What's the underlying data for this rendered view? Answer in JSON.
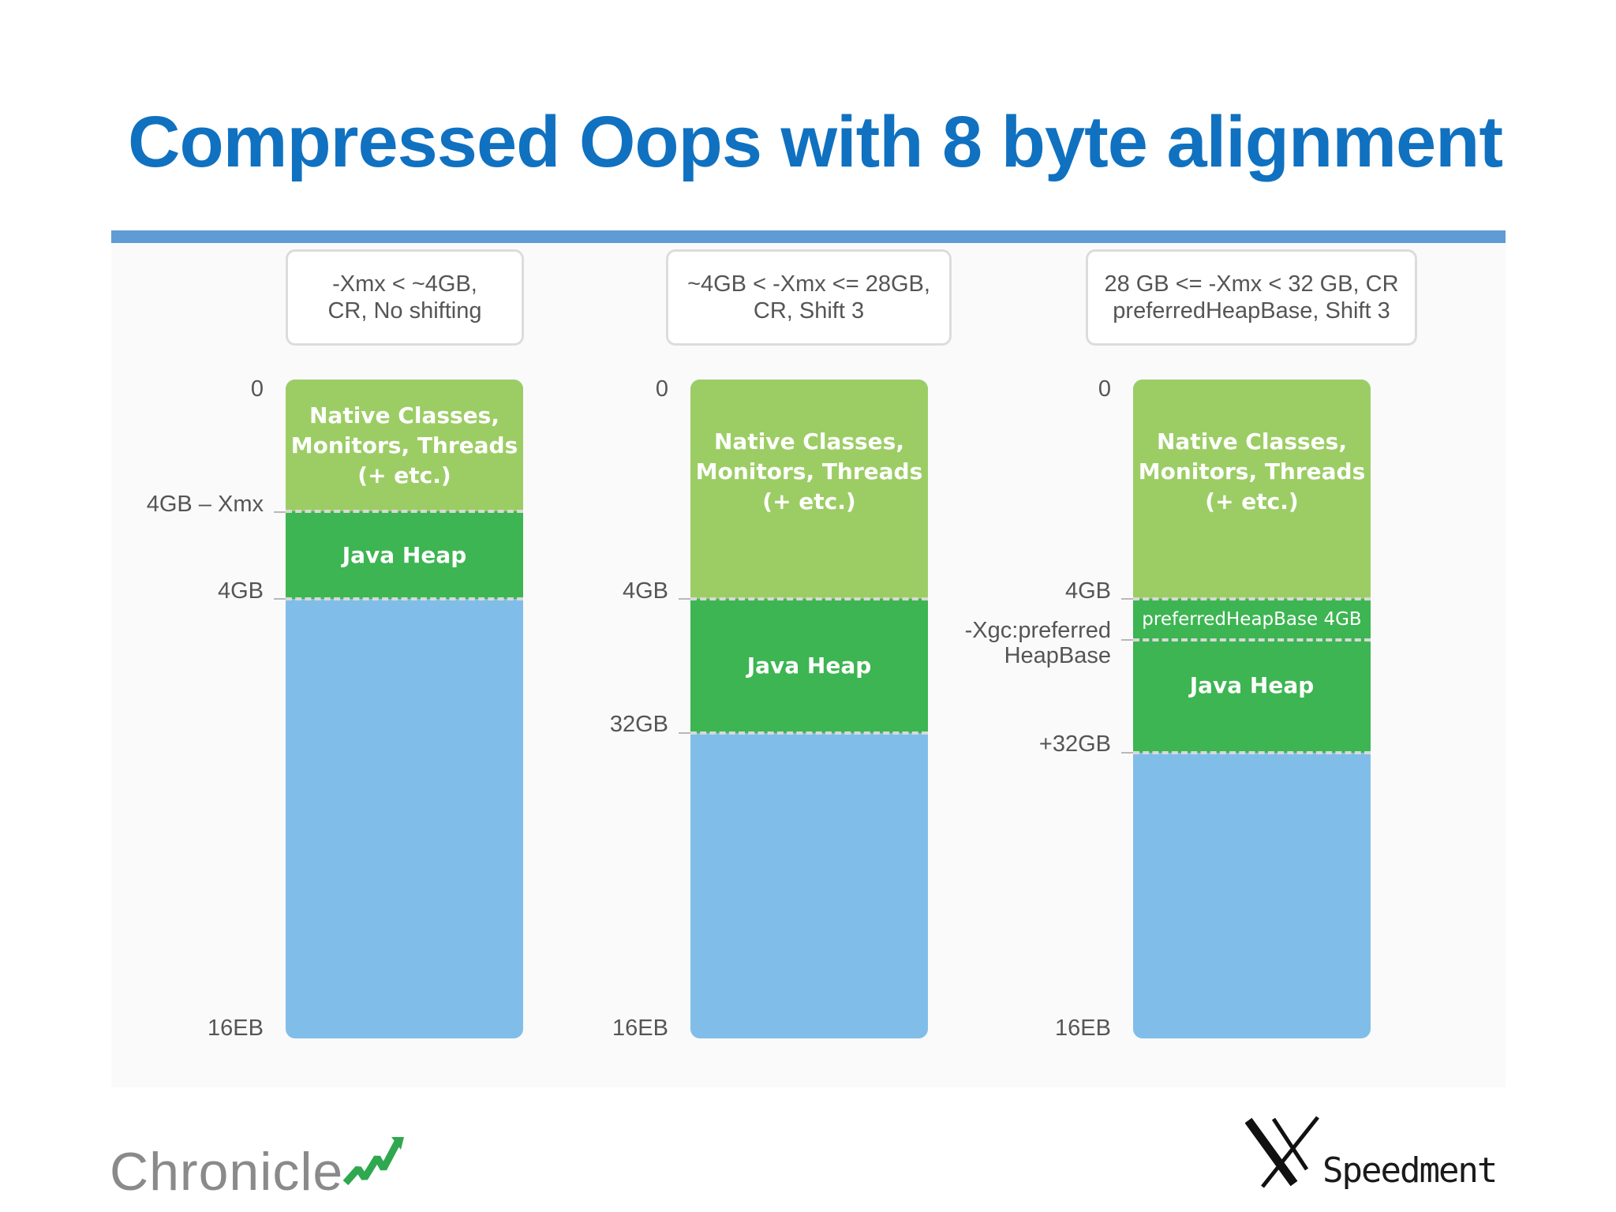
{
  "title": "Compressed Oops with 8 byte alignment",
  "diagram": {
    "columns": [
      {
        "header": [
          "-Xmx < ~4GB,",
          "CR, No shifting"
        ],
        "native_label": [
          "Native Classes,",
          "Monitors, Threads",
          "(+ etc.)"
        ],
        "heap_label": "Java Heap",
        "axis": [
          "0",
          "4GB – Xmx",
          "4GB",
          "16EB"
        ]
      },
      {
        "header": [
          "~4GB < -Xmx <= 28GB,",
          "CR, Shift 3"
        ],
        "native_label": [
          "Native Classes,",
          "Monitors, Threads",
          "(+ etc.)"
        ],
        "heap_label": "Java Heap",
        "axis": [
          "0",
          "4GB",
          "32GB",
          "16EB"
        ]
      },
      {
        "header": [
          "28 GB <= -Xmx < 32 GB, CR",
          "preferredHeapBase, Shift 3"
        ],
        "native_label": [
          "Native Classes,",
          "Monitors, Threads",
          "(+ etc.)"
        ],
        "pref_label": "preferredHeapBase 4GB",
        "heap_label": "Java Heap",
        "axis": [
          "0",
          "4GB",
          "-Xgc:preferred",
          "HeapBase",
          "+32GB",
          "16EB"
        ]
      }
    ]
  },
  "logos": {
    "left": "Chronicle",
    "right": "Speedment"
  },
  "colors": {
    "title": "#1071c0",
    "native": "#9ccd65",
    "heap": "#3db552",
    "unused": "#80bee9"
  }
}
